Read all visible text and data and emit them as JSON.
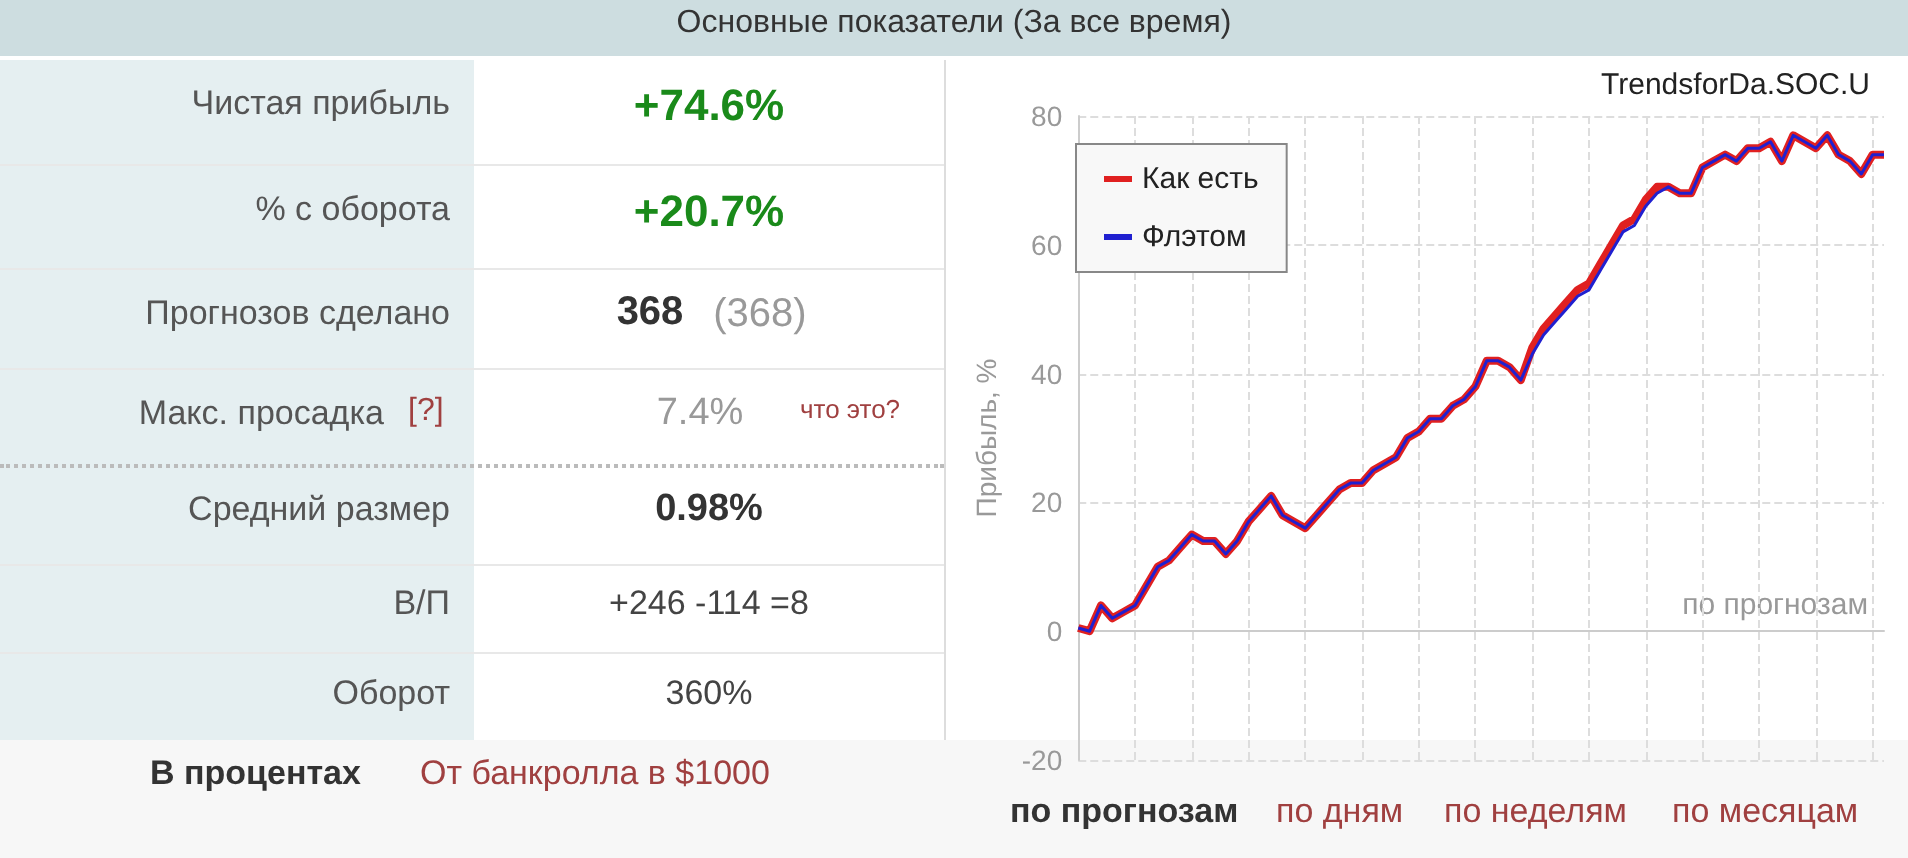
{
  "chart_data": [
    {
      "type": "other",
      "title": "Основные показатели (За все время)",
      "annotations": [
        "Чистая прибыль",
        "+74.6%",
        "% с оборота",
        "+20.7%",
        "Прогнозов сделано",
        "368",
        "(368)",
        "Макс. просадка",
        "[?]",
        "7.4%",
        "что это?",
        "Средний размер",
        "0.98%",
        "В/П",
        "+246 -114 =8",
        "Оборот",
        "360%",
        "В процентах",
        "От банкролла в $1000"
      ]
    },
    {
      "type": "line",
      "title": "TrendsforDa.SOC.U",
      "ylabel": "Прибыль, %",
      "categories": [
        null,
        null,
        null,
        null,
        null,
        null,
        null,
        null,
        null,
        null,
        null,
        null,
        null,
        null,
        null,
        null,
        null,
        null,
        null,
        null,
        null,
        null,
        null,
        null,
        null,
        null,
        null,
        null,
        null,
        null,
        null,
        null,
        null,
        null,
        null,
        null,
        null,
        null,
        null,
        null,
        null,
        null,
        null,
        null,
        null,
        null,
        null,
        null,
        null,
        null,
        null,
        null,
        null,
        null,
        null,
        null,
        null,
        null,
        null,
        null,
        null,
        null,
        null,
        null,
        null,
        null,
        null,
        null,
        null,
        null,
        null,
        null
      ],
      "series": [
        {
          "name": "Как есть",
          "color": "#e02020",
          "values": [
            0.5,
            0,
            4,
            2,
            3,
            4,
            7,
            10,
            11,
            13,
            15,
            14,
            14,
            12,
            14,
            17,
            19,
            21,
            18,
            17,
            16,
            18,
            20,
            22,
            23,
            23,
            25,
            26,
            27,
            30,
            31,
            33,
            33,
            35,
            36,
            38,
            42,
            42,
            41,
            39,
            44,
            47,
            49,
            51,
            53,
            54,
            57,
            60,
            63,
            64,
            67,
            69,
            69,
            68,
            68,
            72,
            73,
            74,
            73,
            75,
            75,
            76,
            73,
            77,
            76,
            75,
            77,
            74,
            73,
            71,
            74,
            74
          ]
        },
        {
          "name": "Флэтом",
          "color": "#2020d0",
          "values": [
            0.5,
            0,
            4,
            2,
            3,
            4,
            7,
            10,
            11,
            13,
            15,
            14,
            14,
            12,
            14,
            17,
            19,
            21,
            18,
            17,
            16,
            18,
            20,
            22,
            23,
            23,
            25,
            26,
            27,
            30,
            31,
            33,
            33,
            35,
            36,
            38,
            42,
            42,
            41,
            39,
            43,
            46,
            48,
            50,
            52,
            53,
            56,
            59,
            62,
            63,
            66,
            68,
            69,
            68,
            68,
            72,
            73,
            74,
            73,
            75,
            75,
            76,
            73,
            77,
            76,
            75,
            77,
            74,
            73,
            71,
            74,
            74
          ]
        }
      ],
      "ylim": [
        -20,
        80
      ],
      "yticks": [
        -20,
        0,
        20,
        40,
        60,
        80
      ],
      "grid": true,
      "legend": "top left",
      "marker": "none",
      "line_style": "solid",
      "annotations": [
        "по прогнозам",
        "по прогнозам",
        "по дням",
        "по неделям",
        "по месяцам"
      ]
    }
  ]
}
